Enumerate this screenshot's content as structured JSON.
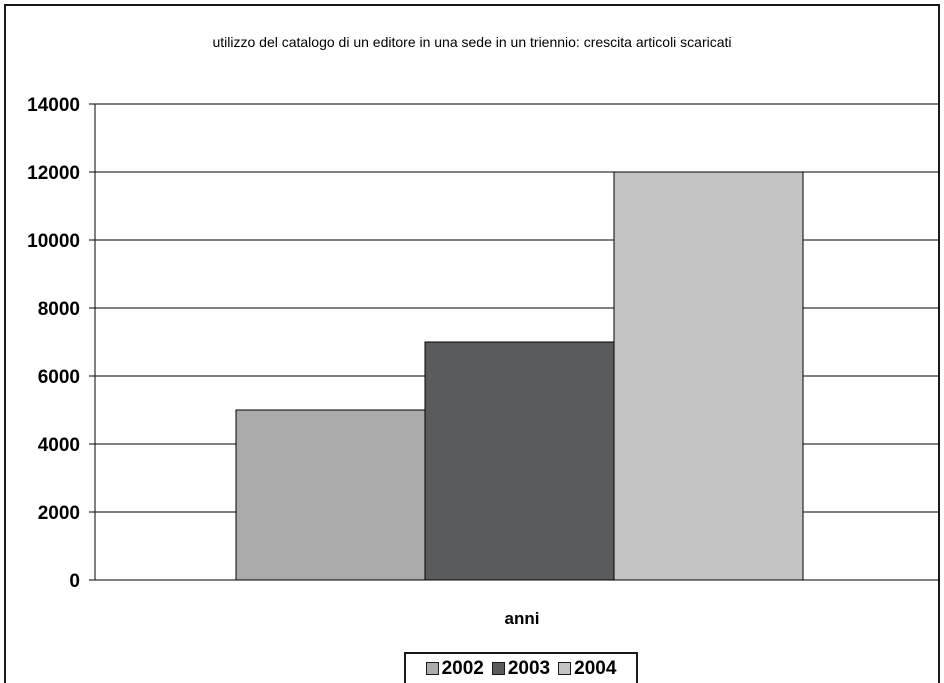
{
  "chart_data": {
    "type": "bar",
    "title": "utilizzo del catalogo di un editore in una sede in un triennio: crescita articoli scaricati",
    "xlabel": "anni",
    "ylabel": "",
    "ylim": [
      0,
      14000
    ],
    "yticks": [
      0,
      2000,
      4000,
      6000,
      8000,
      10000,
      12000,
      14000
    ],
    "grid": true,
    "legend_position": "bottom",
    "series": [
      {
        "name": "2002",
        "values": [
          5000
        ],
        "color": "#ababab"
      },
      {
        "name": "2003",
        "values": [
          7000
        ],
        "color": "#5a5b5d"
      },
      {
        "name": "2004",
        "values": [
          12000
        ],
        "color": "#c3c3c3"
      }
    ]
  }
}
